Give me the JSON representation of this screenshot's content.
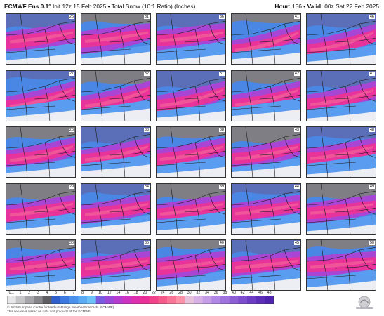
{
  "header": {
    "model": "ECMWF Ens 0.1°",
    "info": "Init 12z 15 Feb 2025 • Total Snow (10:1 Ratio) (Inches)",
    "hour_label": "Hour:",
    "hour": "156",
    "valid_label": "Valid:",
    "valid": "00z Sat 22 Feb 2025"
  },
  "members": [
    "26",
    "31",
    "36",
    "41",
    "46",
    "27",
    "32",
    "37",
    "42",
    "47",
    "28",
    "33",
    "38",
    "43",
    "48",
    "29",
    "34",
    "39",
    "44",
    "49",
    "30",
    "35",
    "40",
    "45",
    "50"
  ],
  "colorbar": {
    "ticks": [
      "0.1",
      "1",
      "2",
      "3",
      "4",
      "5",
      "6",
      "7",
      "8",
      "9",
      "10",
      "12",
      "14",
      "16",
      "18",
      "20",
      "22",
      "24",
      "26",
      "28",
      "30",
      "32",
      "34",
      "36",
      "38",
      "40",
      "42",
      "44",
      "46",
      "48"
    ],
    "colors": [
      "#e8e8ea",
      "#c6c6c9",
      "#a6a6aa",
      "#86868b",
      "#5e5e63",
      "#2f5fc8",
      "#3d78e0",
      "#4c92ec",
      "#5aaaf4",
      "#6cc1f8",
      "#7a5adf",
      "#9a48d8",
      "#b43ccf",
      "#cc33c0",
      "#de2fae",
      "#ea2f98",
      "#f1428a",
      "#f65a8a",
      "#f97597",
      "#fb92a8",
      "#e7c1d9",
      "#d7b1e6",
      "#c59de7",
      "#b087e4",
      "#9f73dd",
      "#8d5fd5",
      "#7c4dcc",
      "#6c3dc3",
      "#5d2fb9",
      "#4f23ae"
    ]
  },
  "footer": {
    "copyright": "© 2025 European Centre for Medium-Range Weather Forecasts (ECMWF).",
    "source": "This service is based on data and products of the ECMWF."
  },
  "logo_icon": "weatherbell-logo-icon"
}
